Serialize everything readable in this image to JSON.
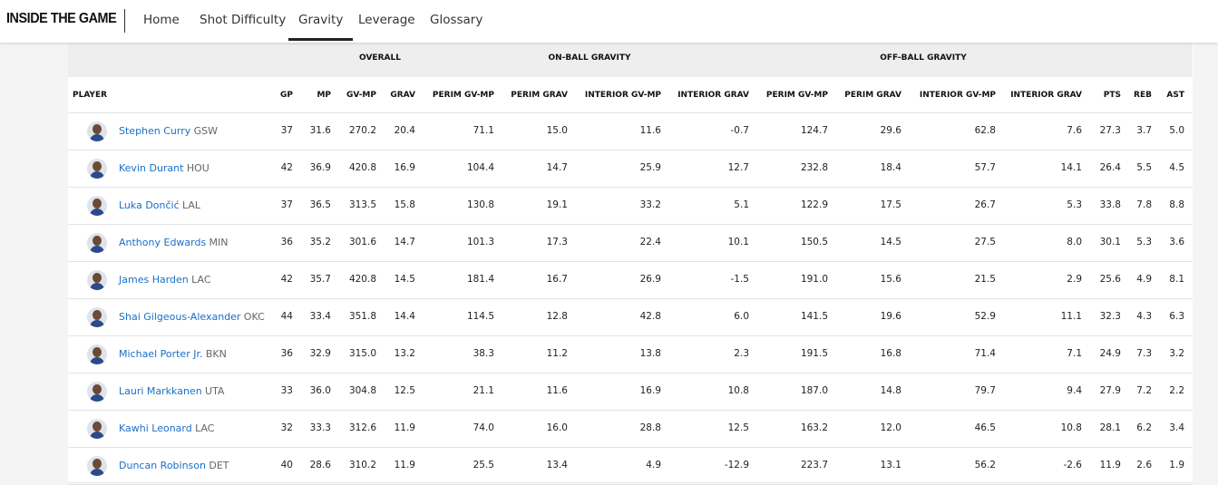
{
  "header": {
    "logo": "INSIDE THE GAME",
    "nav": [
      "Home",
      "Shot Difficulty",
      "Gravity",
      "Leverage",
      "Glossary"
    ],
    "active": 2
  },
  "table": {
    "groups": [
      "OVERALL",
      "ON-BALL GRAVITY",
      "OFF-BALL GRAVITY"
    ],
    "columns": [
      "PLAYER",
      "GP",
      "MP",
      "GV-MP",
      "GRAV",
      "PERIM GV-MP",
      "PERIM GRAV",
      "INTERIOR GV-MP",
      "INTERIOR GRAV",
      "PERIM GV-MP",
      "PERIM GRAV",
      "INTERIOR GV-MP",
      "INTERIOR GRAV",
      "PTS",
      "REB",
      "AST"
    ],
    "rows": [
      {
        "player": "Stephen Curry",
        "team": "GSW",
        "stats": [
          "37",
          "31.6",
          "270.2",
          "20.4",
          "71.1",
          "15.0",
          "11.6",
          "-0.7",
          "124.7",
          "29.6",
          "62.8",
          "7.6",
          "27.3",
          "3.7",
          "5.0"
        ]
      },
      {
        "player": "Kevin Durant",
        "team": "HOU",
        "stats": [
          "42",
          "36.9",
          "420.8",
          "16.9",
          "104.4",
          "14.7",
          "25.9",
          "12.7",
          "232.8",
          "18.4",
          "57.7",
          "14.1",
          "26.4",
          "5.5",
          "4.5"
        ]
      },
      {
        "player": "Luka Dončić",
        "team": "LAL",
        "stats": [
          "37",
          "36.5",
          "313.5",
          "15.8",
          "130.8",
          "19.1",
          "33.2",
          "5.1",
          "122.9",
          "17.5",
          "26.7",
          "5.3",
          "33.8",
          "7.8",
          "8.8"
        ]
      },
      {
        "player": "Anthony Edwards",
        "team": "MIN",
        "stats": [
          "36",
          "35.2",
          "301.6",
          "14.7",
          "101.3",
          "17.3",
          "22.4",
          "10.1",
          "150.5",
          "14.5",
          "27.5",
          "8.0",
          "30.1",
          "5.3",
          "3.6"
        ]
      },
      {
        "player": "James Harden",
        "team": "LAC",
        "stats": [
          "42",
          "35.7",
          "420.8",
          "14.5",
          "181.4",
          "16.7",
          "26.9",
          "-1.5",
          "191.0",
          "15.6",
          "21.5",
          "2.9",
          "25.6",
          "4.9",
          "8.1"
        ]
      },
      {
        "player": "Shai Gilgeous-Alexander",
        "team": "OKC",
        "stats": [
          "44",
          "33.4",
          "351.8",
          "14.4",
          "114.5",
          "12.8",
          "42.8",
          "6.0",
          "141.5",
          "19.6",
          "52.9",
          "11.1",
          "32.3",
          "4.3",
          "6.3"
        ]
      },
      {
        "player": "Michael Porter Jr.",
        "team": "BKN",
        "stats": [
          "36",
          "32.9",
          "315.0",
          "13.2",
          "38.3",
          "11.2",
          "13.8",
          "2.3",
          "191.5",
          "16.8",
          "71.4",
          "7.1",
          "24.9",
          "7.3",
          "3.2"
        ]
      },
      {
        "player": "Lauri Markkanen",
        "team": "UTA",
        "stats": [
          "33",
          "36.0",
          "304.8",
          "12.5",
          "21.1",
          "11.6",
          "16.9",
          "10.8",
          "187.0",
          "14.8",
          "79.7",
          "9.4",
          "27.9",
          "7.2",
          "2.2"
        ]
      },
      {
        "player": "Kawhi Leonard",
        "team": "LAC",
        "stats": [
          "32",
          "33.3",
          "312.6",
          "11.9",
          "74.0",
          "16.0",
          "28.8",
          "12.5",
          "163.2",
          "12.0",
          "46.5",
          "10.8",
          "28.1",
          "6.2",
          "3.4"
        ]
      },
      {
        "player": "Duncan Robinson",
        "team": "DET",
        "stats": [
          "40",
          "28.6",
          "310.2",
          "11.9",
          "25.5",
          "13.4",
          "4.9",
          "-12.9",
          "223.7",
          "13.1",
          "56.2",
          "-2.6",
          "11.9",
          "2.6",
          "1.9"
        ]
      }
    ]
  }
}
